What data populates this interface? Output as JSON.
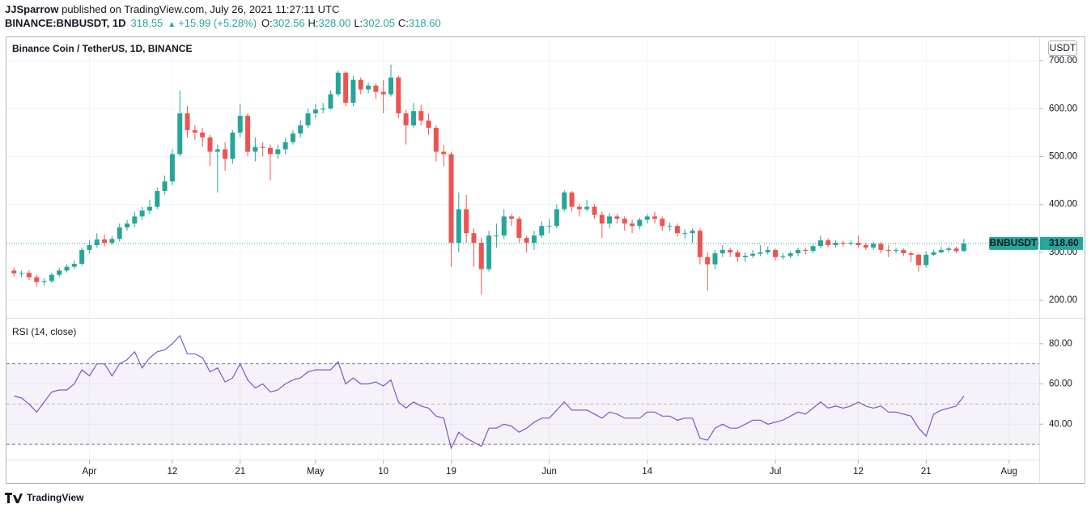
{
  "header": {
    "author": "JJSparrow",
    "published": " published on TradingView.com, July 26, 2021 11:27:11 UTC",
    "symbol": "BINANCE:BNBUSDT, 1D",
    "last": "318.55",
    "arrow": "▲",
    "change": "+15.99 (+5.28%)",
    "ohlc": [
      {
        "label": "O:",
        "value": "302.56"
      },
      {
        "label": "H:",
        "value": "328.00"
      },
      {
        "label": "L:",
        "value": "302.05"
      },
      {
        "label": "C:",
        "value": "318.60"
      }
    ]
  },
  "chart_data": [
    {
      "type": "candlestick",
      "title": "Binance Coin / TetherUS, 1D, BINANCE",
      "currency": "USDT",
      "x": [
        "2021-03-22",
        "2021-03-23",
        "2021-03-24",
        "2021-03-25",
        "2021-03-26",
        "2021-03-27",
        "2021-03-28",
        "2021-03-29",
        "2021-03-30",
        "2021-03-31",
        "2021-04-01",
        "2021-04-02",
        "2021-04-03",
        "2021-04-04",
        "2021-04-05",
        "2021-04-06",
        "2021-04-07",
        "2021-04-08",
        "2021-04-09",
        "2021-04-10",
        "2021-04-11",
        "2021-04-12",
        "2021-04-13",
        "2021-04-14",
        "2021-04-15",
        "2021-04-16",
        "2021-04-17",
        "2021-04-18",
        "2021-04-19",
        "2021-04-20",
        "2021-04-21",
        "2021-04-22",
        "2021-04-23",
        "2021-04-24",
        "2021-04-25",
        "2021-04-26",
        "2021-04-27",
        "2021-04-28",
        "2021-04-29",
        "2021-04-30",
        "2021-05-01",
        "2021-05-02",
        "2021-05-03",
        "2021-05-04",
        "2021-05-05",
        "2021-05-06",
        "2021-05-07",
        "2021-05-08",
        "2021-05-09",
        "2021-05-10",
        "2021-05-11",
        "2021-05-12",
        "2021-05-13",
        "2021-05-14",
        "2021-05-15",
        "2021-05-16",
        "2021-05-17",
        "2021-05-18",
        "2021-05-19",
        "2021-05-20",
        "2021-05-21",
        "2021-05-22",
        "2021-05-23",
        "2021-05-24",
        "2021-05-25",
        "2021-05-26",
        "2021-05-27",
        "2021-05-28",
        "2021-05-29",
        "2021-05-30",
        "2021-05-31",
        "2021-06-01",
        "2021-06-02",
        "2021-06-03",
        "2021-06-04",
        "2021-06-05",
        "2021-06-06",
        "2021-06-07",
        "2021-06-08",
        "2021-06-09",
        "2021-06-10",
        "2021-06-11",
        "2021-06-12",
        "2021-06-13",
        "2021-06-14",
        "2021-06-15",
        "2021-06-16",
        "2021-06-17",
        "2021-06-18",
        "2021-06-19",
        "2021-06-20",
        "2021-06-21",
        "2021-06-22",
        "2021-06-23",
        "2021-06-24",
        "2021-06-25",
        "2021-06-26",
        "2021-06-27",
        "2021-06-28",
        "2021-06-29",
        "2021-06-30",
        "2021-07-01",
        "2021-07-02",
        "2021-07-03",
        "2021-07-04",
        "2021-07-05",
        "2021-07-06",
        "2021-07-07",
        "2021-07-08",
        "2021-07-09",
        "2021-07-10",
        "2021-07-11",
        "2021-07-12",
        "2021-07-13",
        "2021-07-14",
        "2021-07-15",
        "2021-07-16",
        "2021-07-17",
        "2021-07-18",
        "2021-07-19",
        "2021-07-20",
        "2021-07-21",
        "2021-07-22",
        "2021-07-23",
        "2021-07-24",
        "2021-07-25",
        "2021-07-26"
      ],
      "open": [
        262,
        256,
        257,
        248,
        238,
        240,
        253,
        262,
        270,
        276,
        305,
        315,
        327,
        320,
        328,
        352,
        360,
        375,
        387,
        395,
        428,
        448,
        505,
        590,
        555,
        550,
        540,
        510,
        515,
        495,
        550,
        585,
        510,
        520,
        518,
        505,
        515,
        530,
        548,
        565,
        590,
        598,
        600,
        630,
        675,
        612,
        660,
        640,
        648,
        635,
        630,
        665,
        590,
        565,
        595,
        575,
        560,
        510,
        505,
        320,
        390,
        340,
        320,
        265,
        335,
        335,
        375,
        370,
        330,
        320,
        335,
        355,
        355,
        390,
        425,
        395,
        390,
        395,
        378,
        360,
        375,
        370,
        360,
        355,
        368,
        375,
        370,
        355,
        355,
        340,
        340,
        345,
        290,
        275,
        298,
        305,
        300,
        290,
        293,
        297,
        300,
        305,
        290,
        292,
        298,
        305,
        303,
        313,
        325,
        315,
        320,
        318,
        320,
        315,
        310,
        318,
        305,
        303,
        305,
        298,
        295,
        273,
        295,
        300,
        305,
        308,
        302.56
      ],
      "high": [
        268,
        262,
        263,
        254,
        246,
        257,
        268,
        275,
        283,
        310,
        325,
        340,
        338,
        334,
        360,
        368,
        385,
        395,
        410,
        435,
        460,
        515,
        638,
        605,
        565,
        560,
        545,
        525,
        530,
        555,
        610,
        590,
        540,
        530,
        525,
        525,
        540,
        555,
        575,
        600,
        610,
        612,
        638,
        680,
        678,
        668,
        665,
        655,
        652,
        660,
        692,
        668,
        598,
        612,
        608,
        590,
        565,
        525,
        510,
        425,
        420,
        350,
        330,
        345,
        360,
        390,
        380,
        375,
        335,
        345,
        365,
        370,
        400,
        430,
        428,
        400,
        410,
        400,
        385,
        382,
        380,
        375,
        368,
        372,
        380,
        385,
        375,
        362,
        360,
        348,
        350,
        350,
        300,
        305,
        315,
        310,
        305,
        300,
        305,
        315,
        312,
        308,
        298,
        302,
        310,
        310,
        318,
        335,
        330,
        325,
        324,
        325,
        335,
        320,
        322,
        322,
        315,
        310,
        308,
        302,
        298,
        302,
        305,
        312,
        312,
        312,
        328
      ],
      "low": [
        250,
        248,
        242,
        228,
        230,
        236,
        248,
        258,
        265,
        272,
        298,
        310,
        312,
        315,
        322,
        345,
        352,
        368,
        380,
        390,
        420,
        440,
        500,
        540,
        535,
        520,
        480,
        425,
        470,
        485,
        540,
        500,
        490,
        500,
        450,
        495,
        505,
        525,
        540,
        560,
        580,
        590,
        598,
        625,
        605,
        605,
        630,
        632,
        620,
        590,
        625,
        580,
        525,
        560,
        565,
        545,
        490,
        480,
        270,
        300,
        320,
        270,
        212,
        260,
        310,
        328,
        355,
        320,
        300,
        305,
        330,
        340,
        350,
        385,
        385,
        375,
        385,
        370,
        330,
        350,
        360,
        345,
        340,
        348,
        360,
        360,
        345,
        345,
        332,
        328,
        320,
        275,
        220,
        265,
        290,
        290,
        280,
        280,
        288,
        292,
        295,
        282,
        285,
        288,
        292,
        296,
        298,
        308,
        310,
        310,
        312,
        314,
        310,
        305,
        305,
        298,
        290,
        298,
        292,
        280,
        260,
        268,
        292,
        298,
        300,
        298,
        302.05
      ],
      "close": [
        256,
        257,
        248,
        238,
        240,
        253,
        262,
        270,
        276,
        305,
        315,
        327,
        320,
        328,
        352,
        360,
        375,
        387,
        395,
        428,
        448,
        505,
        590,
        555,
        550,
        540,
        510,
        515,
        495,
        550,
        585,
        510,
        520,
        518,
        505,
        515,
        530,
        548,
        565,
        590,
        598,
        600,
        630,
        675,
        612,
        660,
        640,
        648,
        635,
        630,
        665,
        590,
        565,
        595,
        575,
        560,
        510,
        505,
        320,
        390,
        340,
        320,
        265,
        335,
        335,
        375,
        370,
        330,
        320,
        335,
        355,
        355,
        390,
        425,
        395,
        390,
        395,
        378,
        360,
        375,
        370,
        360,
        355,
        368,
        375,
        370,
        355,
        355,
        340,
        340,
        345,
        290,
        275,
        298,
        305,
        300,
        290,
        293,
        297,
        300,
        305,
        290,
        292,
        298,
        305,
        303,
        313,
        325,
        315,
        320,
        318,
        320,
        315,
        310,
        318,
        305,
        303,
        305,
        298,
        295,
        273,
        295,
        300,
        305,
        308,
        302.56,
        318.6
      ],
      "up_color": "#26a69a",
      "down_color": "#ef5350",
      "xlim": [
        "2021-03-21",
        "2021-08-05"
      ],
      "ylim": [
        163,
        749
      ],
      "yticks": [
        {
          "value": 700,
          "label": "700.00"
        },
        {
          "value": 600,
          "label": "600.00"
        },
        {
          "value": 500,
          "label": "500.00"
        },
        {
          "value": 400,
          "label": "400.00"
        },
        {
          "value": 300,
          "label": "300.00"
        },
        {
          "value": 200,
          "label": "200.00"
        }
      ],
      "last_price": {
        "name": "BNBUSDT",
        "value": {
          "value": 318.6,
          "label": "318.60"
        }
      }
    },
    {
      "type": "line",
      "title": "RSI (14, close)",
      "color": "#7e57c2",
      "values": [
        54,
        53,
        50,
        46,
        51,
        56,
        57,
        57,
        60,
        67,
        64,
        70,
        70,
        64,
        70,
        72,
        76,
        68,
        73,
        76,
        77,
        80,
        84,
        75,
        75,
        73,
        66,
        68,
        61,
        63,
        70,
        62,
        58,
        60,
        56,
        57,
        60,
        62,
        63,
        66,
        67,
        67,
        67,
        71,
        60,
        63,
        60,
        60,
        61,
        59,
        62,
        51,
        48,
        51,
        49,
        48,
        44,
        43,
        28,
        36,
        33,
        31,
        29,
        38,
        38,
        40,
        39,
        36,
        38,
        41,
        43,
        43,
        47,
        51,
        47,
        47,
        47,
        45,
        43,
        46,
        45,
        43,
        43,
        43,
        46,
        46,
        44,
        44,
        42,
        43,
        43,
        33,
        32,
        38,
        40,
        38,
        38,
        40,
        42,
        42,
        40,
        41,
        42,
        44,
        46,
        45,
        48,
        51,
        48,
        49,
        48,
        49,
        51,
        49,
        48,
        49,
        46,
        46,
        45,
        44,
        38,
        34,
        45,
        47,
        48,
        49,
        54
      ],
      "ylim": [
        22.4,
        92.4
      ],
      "yticks": [
        {
          "value": 80,
          "label": "80.00"
        },
        {
          "value": 60,
          "label": "60.00"
        },
        {
          "value": 40,
          "label": "40.00"
        }
      ],
      "band": [
        30,
        70
      ],
      "midline": 50,
      "xticks": [
        {
          "value": "2021-04-01",
          "label": "Apr"
        },
        {
          "value": "2021-04-12",
          "label": "12"
        },
        {
          "value": "2021-04-21",
          "label": "21"
        },
        {
          "value": "2021-05-01",
          "label": "May"
        },
        {
          "value": "2021-05-10",
          "label": "10"
        },
        {
          "value": "2021-05-19",
          "label": "19"
        },
        {
          "value": "2021-06-01",
          "label": "Jun"
        },
        {
          "value": "2021-06-14",
          "label": "14"
        },
        {
          "value": "2021-07-01",
          "label": "Jul"
        },
        {
          "value": "2021-07-12",
          "label": "12"
        },
        {
          "value": "2021-07-21",
          "label": "21"
        },
        {
          "value": "2021-08-01",
          "label": "Aug"
        }
      ]
    }
  ],
  "footer": "TradingView"
}
